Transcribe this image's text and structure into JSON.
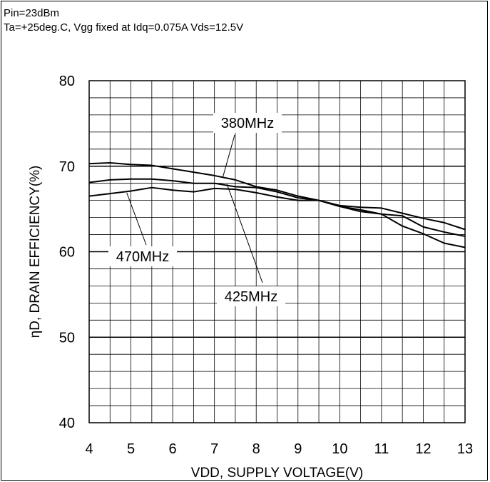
{
  "notes": {
    "line1": "Pin=23dBm",
    "line2": "Ta=+25deg.C, Vgg fixed at Idq=0.075A Vds=12.5V"
  },
  "chart_data": {
    "type": "line",
    "title": "",
    "xlabel": "VDD, SUPPLY VOLTAGE(V)",
    "ylabel": "ηD, DRAIN EFFICIENCY(%)",
    "xlim": [
      4,
      13
    ],
    "ylim": [
      40,
      80
    ],
    "x_ticks": [
      4,
      5,
      6,
      7,
      8,
      9,
      10,
      11,
      12,
      13
    ],
    "y_ticks": [
      40,
      50,
      60,
      70,
      80
    ],
    "grid": true,
    "x": [
      4,
      4.5,
      5,
      5.5,
      6,
      6.5,
      7,
      7.5,
      8,
      8.5,
      9,
      9.5,
      10,
      10.5,
      11,
      11.5,
      12,
      12.5,
      13
    ],
    "series": [
      {
        "name": "380MHz",
        "values": [
          70.3,
          70.4,
          70.2,
          70.1,
          69.7,
          69.3,
          68.9,
          68.4,
          67.6,
          67.2,
          66.5,
          66.0,
          65.4,
          65.2,
          65.1,
          64.5,
          63.9,
          63.4,
          62.6
        ]
      },
      {
        "name": "425MHz",
        "values": [
          68.1,
          68.4,
          68.5,
          68.5,
          68.3,
          68.0,
          68.0,
          67.6,
          67.5,
          67.0,
          66.3,
          66.0,
          65.3,
          64.7,
          64.4,
          63.0,
          62.1,
          61.0,
          60.5
        ]
      },
      {
        "name": "470MHz",
        "values": [
          66.5,
          66.8,
          67.1,
          67.5,
          67.2,
          67.0,
          67.4,
          67.3,
          66.9,
          66.4,
          66.0,
          66.0,
          65.3,
          64.9,
          64.4,
          64.2,
          62.9,
          62.3,
          61.8
        ]
      }
    ],
    "annotations": [
      {
        "series": "380MHz",
        "text": "380MHz",
        "points_at": [
          7.2,
          68.7
        ]
      },
      {
        "series": "425MHz",
        "text": "425MHz",
        "points_at": [
          7.3,
          67.9
        ]
      },
      {
        "series": "470MHz",
        "text": "470MHz",
        "points_at": [
          4.9,
          66.9
        ]
      }
    ]
  }
}
